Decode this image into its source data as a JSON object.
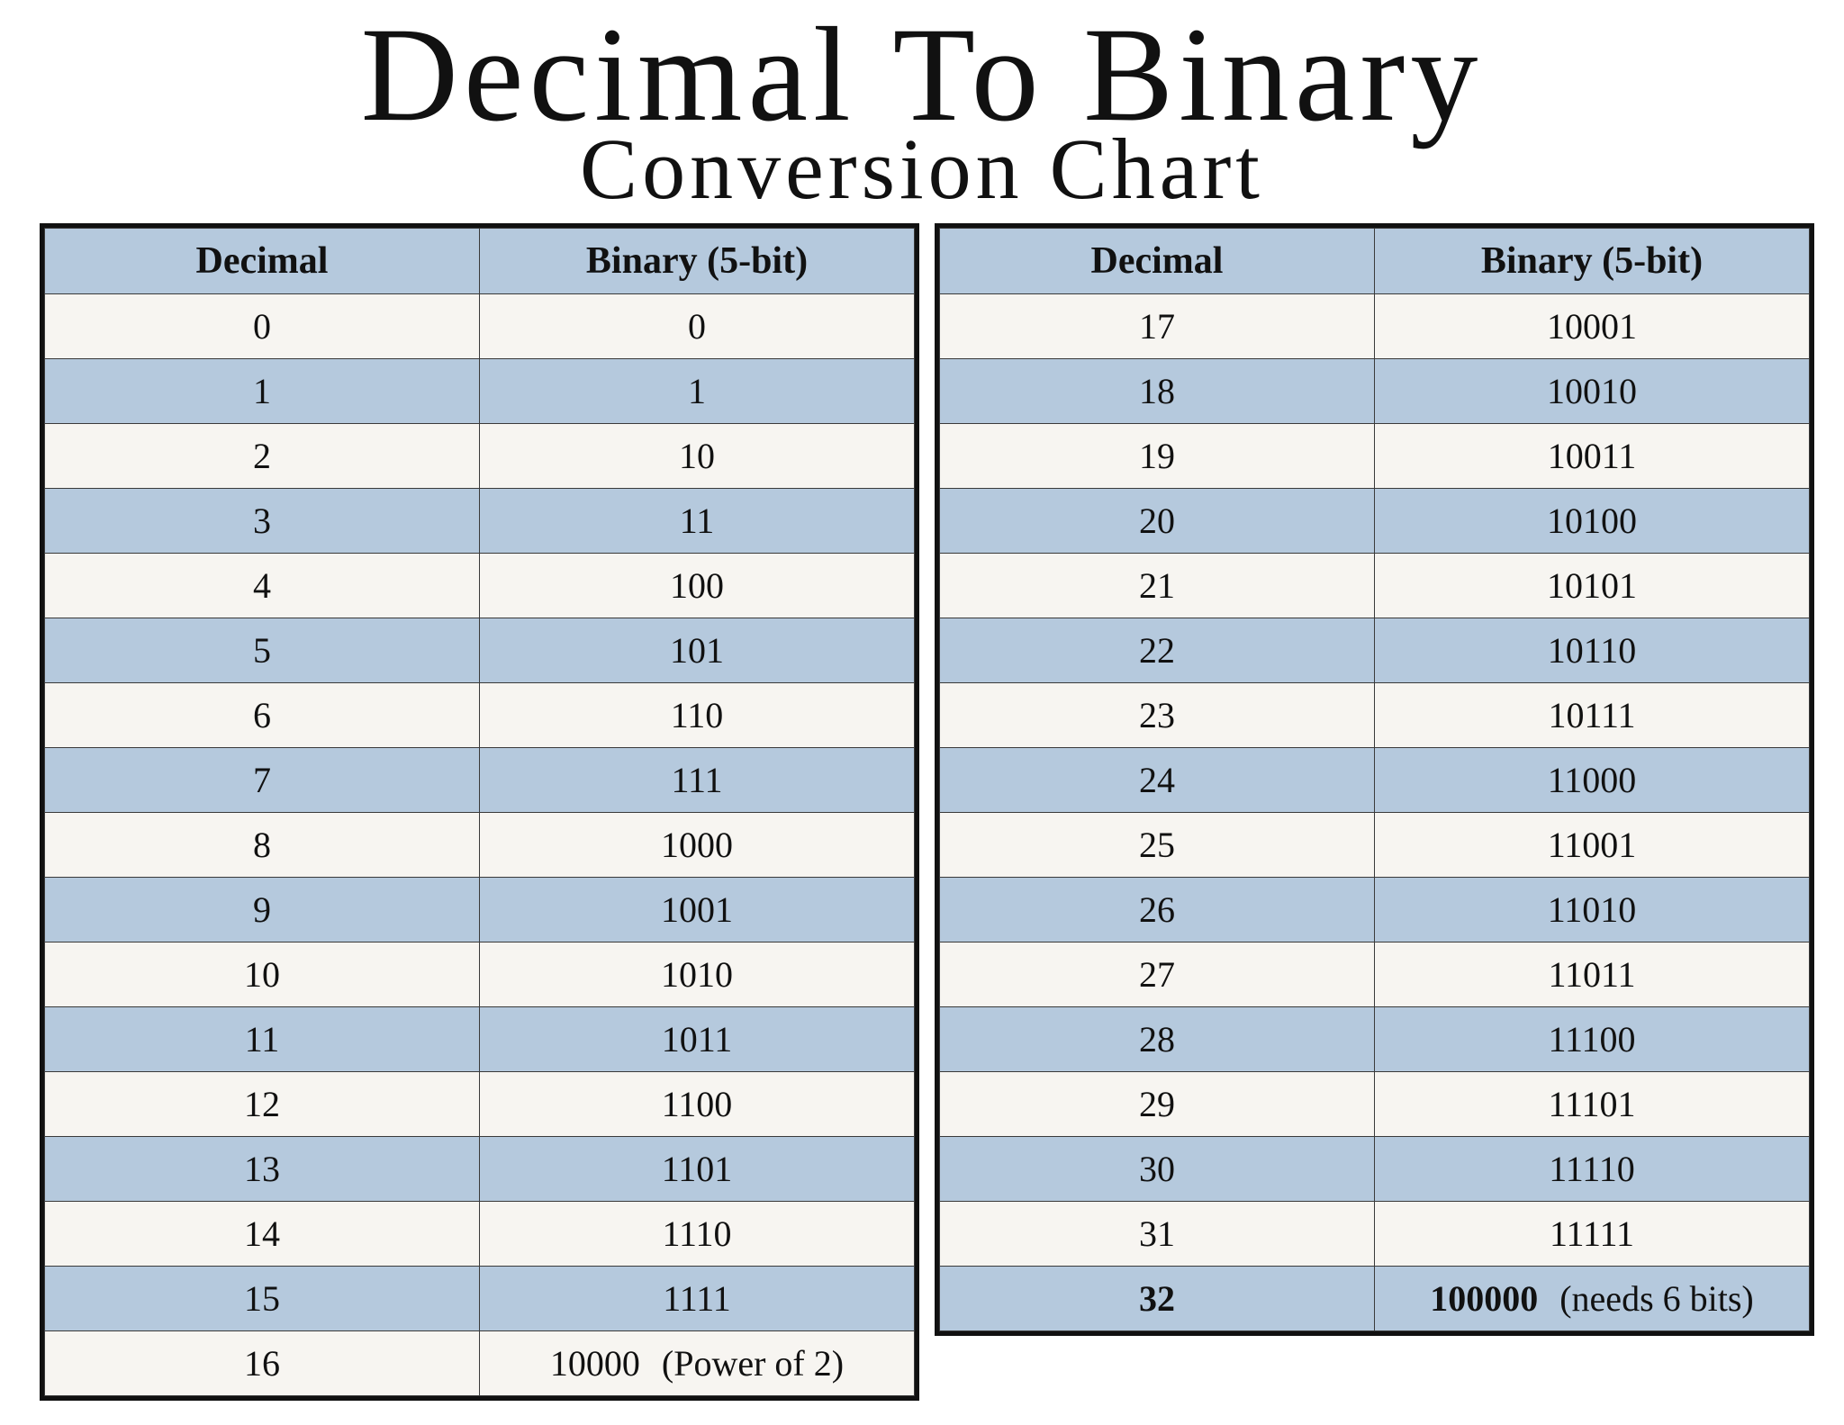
{
  "title": "Decimal To Binary",
  "subtitle": "Conversion Chart",
  "columns": {
    "decimal": "Decimal",
    "binary": "Binary (5-bit)"
  },
  "left_table": [
    {
      "decimal": "0",
      "binary": "0",
      "note": ""
    },
    {
      "decimal": "1",
      "binary": "1",
      "note": ""
    },
    {
      "decimal": "2",
      "binary": "10",
      "note": ""
    },
    {
      "decimal": "3",
      "binary": "11",
      "note": ""
    },
    {
      "decimal": "4",
      "binary": "100",
      "note": ""
    },
    {
      "decimal": "5",
      "binary": "101",
      "note": ""
    },
    {
      "decimal": "6",
      "binary": "110",
      "note": ""
    },
    {
      "decimal": "7",
      "binary": "111",
      "note": ""
    },
    {
      "decimal": "8",
      "binary": "1000",
      "note": ""
    },
    {
      "decimal": "9",
      "binary": "1001",
      "note": ""
    },
    {
      "decimal": "10",
      "binary": "1010",
      "note": ""
    },
    {
      "decimal": "11",
      "binary": "1011",
      "note": ""
    },
    {
      "decimal": "12",
      "binary": "1100",
      "note": ""
    },
    {
      "decimal": "13",
      "binary": "1101",
      "note": ""
    },
    {
      "decimal": "14",
      "binary": "1110",
      "note": ""
    },
    {
      "decimal": "15",
      "binary": "1111",
      "note": ""
    },
    {
      "decimal": "16",
      "binary": "10000",
      "note": "(Power of 2)"
    }
  ],
  "right_table": [
    {
      "decimal": "17",
      "binary": "10001",
      "note": ""
    },
    {
      "decimal": "18",
      "binary": "10010",
      "note": ""
    },
    {
      "decimal": "19",
      "binary": "10011",
      "note": ""
    },
    {
      "decimal": "20",
      "binary": "10100",
      "note": ""
    },
    {
      "decimal": "21",
      "binary": "10101",
      "note": ""
    },
    {
      "decimal": "22",
      "binary": "10110",
      "note": ""
    },
    {
      "decimal": "23",
      "binary": "10111",
      "note": ""
    },
    {
      "decimal": "24",
      "binary": "11000",
      "note": ""
    },
    {
      "decimal": "25",
      "binary": "11001",
      "note": ""
    },
    {
      "decimal": "26",
      "binary": "11010",
      "note": ""
    },
    {
      "decimal": "27",
      "binary": "11011",
      "note": ""
    },
    {
      "decimal": "28",
      "binary": "11100",
      "note": ""
    },
    {
      "decimal": "29",
      "binary": "11101",
      "note": ""
    },
    {
      "decimal": "30",
      "binary": "11110",
      "note": ""
    },
    {
      "decimal": "31",
      "binary": "11111",
      "note": ""
    },
    {
      "decimal": "32",
      "binary": "100000",
      "note": "(needs 6 bits)",
      "bold": true
    }
  ],
  "colors": {
    "header_bg": "#b5c9dd",
    "row_light": "#f7f5f1",
    "row_blue": "#b5c9dd",
    "border": "#111111"
  },
  "chart_data": {
    "type": "table",
    "title": "Decimal To Binary",
    "subtitle": "Conversion Chart",
    "columns": [
      "Decimal",
      "Binary (5-bit)"
    ],
    "rows": [
      [
        0,
        "0"
      ],
      [
        1,
        "1"
      ],
      [
        2,
        "10"
      ],
      [
        3,
        "11"
      ],
      [
        4,
        "100"
      ],
      [
        5,
        "101"
      ],
      [
        6,
        "110"
      ],
      [
        7,
        "111"
      ],
      [
        8,
        "1000"
      ],
      [
        9,
        "1001"
      ],
      [
        10,
        "1010"
      ],
      [
        11,
        "1011"
      ],
      [
        12,
        "1100"
      ],
      [
        13,
        "1101"
      ],
      [
        14,
        "1110"
      ],
      [
        15,
        "1111"
      ],
      [
        16,
        "10000"
      ],
      [
        17,
        "10001"
      ],
      [
        18,
        "10010"
      ],
      [
        19,
        "10011"
      ],
      [
        20,
        "10100"
      ],
      [
        21,
        "10101"
      ],
      [
        22,
        "10110"
      ],
      [
        23,
        "10111"
      ],
      [
        24,
        "11000"
      ],
      [
        25,
        "11001"
      ],
      [
        26,
        "11010"
      ],
      [
        27,
        "11011"
      ],
      [
        28,
        "11100"
      ],
      [
        29,
        "11101"
      ],
      [
        30,
        "11110"
      ],
      [
        31,
        "11111"
      ],
      [
        32,
        "100000"
      ]
    ],
    "annotations": [
      "(Power of 2)",
      "(needs 6 bits)"
    ]
  }
}
